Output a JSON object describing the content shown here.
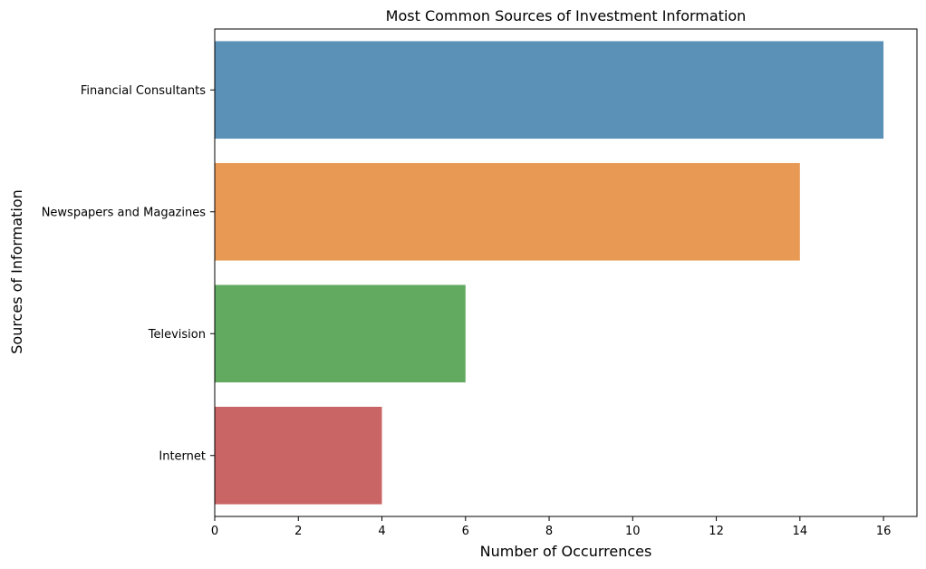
{
  "chart_data": {
    "type": "bar",
    "orientation": "horizontal",
    "title": "Most Common Sources of Investment Information",
    "xlabel": "Number of Occurrences",
    "ylabel": "Sources of Information",
    "categories": [
      "Financial Consultants",
      "Newspapers and Magazines",
      "Television",
      "Internet"
    ],
    "values": [
      16,
      14,
      6,
      4
    ],
    "colors": [
      "#5b91b7",
      "#e89a55",
      "#62aa60",
      "#ca6566"
    ],
    "xlim": [
      0,
      16.8
    ],
    "xticks": [
      0,
      2,
      4,
      6,
      8,
      10,
      12,
      14,
      16
    ],
    "grid": false,
    "legend": "none"
  }
}
